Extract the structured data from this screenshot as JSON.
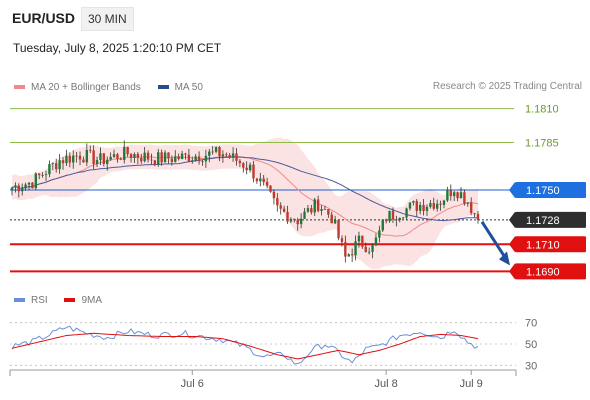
{
  "header": {
    "pair": "EUR/USD",
    "timeframe": "30 MIN",
    "datetime": "Tuesday, July 8, 2025 1:20:10 PM CET"
  },
  "legend": {
    "items": [
      {
        "label": "MA 20 + Bollinger Bands",
        "color": "#f08a8a"
      },
      {
        "label": "MA 50",
        "color": "#2b4c8c"
      }
    ],
    "credit": "Research © 2025 Trading Central"
  },
  "chart_data": {
    "type": "candlestick",
    "price_ylim": [
      1.168,
      1.182
    ],
    "levels": [
      {
        "label": "1.1810",
        "value": 1.181,
        "kind": "target",
        "color": "#8dbb44"
      },
      {
        "label": "1.1785",
        "value": 1.1785,
        "kind": "target",
        "color": "#8dbb44"
      },
      {
        "label": "1.1750",
        "value": 1.175,
        "kind": "pivot",
        "color": "#1e5fcf"
      },
      {
        "label": "1.1728",
        "value": 1.1728,
        "kind": "last",
        "color": "#333333"
      },
      {
        "label": "1.1710",
        "value": 1.171,
        "kind": "support",
        "color": "#e01010"
      },
      {
        "label": "1.1690",
        "value": 1.169,
        "kind": "support",
        "color": "#e01010"
      }
    ],
    "x_ticks": [
      {
        "label": "Jul 6",
        "index": 53
      },
      {
        "label": "Jul 8",
        "index": 110
      },
      {
        "label": "Jul 9",
        "index": 135
      }
    ],
    "price_waypoints": [
      [
        0,
        1.1752
      ],
      [
        6,
        1.1756
      ],
      [
        14,
        1.1772
      ],
      [
        20,
        1.1776
      ],
      [
        26,
        1.1772
      ],
      [
        34,
        1.1777
      ],
      [
        42,
        1.1773
      ],
      [
        50,
        1.1774
      ],
      [
        56,
        1.1776
      ],
      [
        62,
        1.1777
      ],
      [
        66,
        1.1772
      ],
      [
        70,
        1.1766
      ],
      [
        74,
        1.1752
      ],
      [
        78,
        1.1736
      ],
      [
        84,
        1.1728
      ],
      [
        90,
        1.174
      ],
      [
        94,
        1.173
      ],
      [
        98,
        1.17
      ],
      [
        102,
        1.1712
      ],
      [
        106,
        1.1707
      ],
      [
        110,
        1.173
      ],
      [
        118,
        1.1738
      ],
      [
        126,
        1.1742
      ],
      [
        130,
        1.1752
      ],
      [
        134,
        1.1742
      ],
      [
        137,
        1.1728
      ]
    ],
    "rsi": {
      "ylim": [
        20,
        80
      ],
      "ticks": [
        70,
        50,
        30
      ],
      "legend": [
        {
          "label": "RSI",
          "color": "#6a8fd8"
        },
        {
          "label": "9MA",
          "color": "#e01010"
        }
      ],
      "rsi_waypoints": [
        [
          0,
          48
        ],
        [
          6,
          52
        ],
        [
          12,
          60
        ],
        [
          16,
          66
        ],
        [
          22,
          60
        ],
        [
          28,
          56
        ],
        [
          34,
          62
        ],
        [
          42,
          58
        ],
        [
          50,
          60
        ],
        [
          56,
          57
        ],
        [
          62,
          54
        ],
        [
          68,
          48
        ],
        [
          74,
          38
        ],
        [
          80,
          40
        ],
        [
          84,
          30
        ],
        [
          88,
          44
        ],
        [
          92,
          50
        ],
        [
          96,
          42
        ],
        [
          100,
          32
        ],
        [
          104,
          45
        ],
        [
          108,
          48
        ],
        [
          114,
          58
        ],
        [
          120,
          62
        ],
        [
          126,
          56
        ],
        [
          130,
          64
        ],
        [
          134,
          52
        ],
        [
          137,
          47
        ]
      ],
      "ma_waypoints": [
        [
          0,
          46
        ],
        [
          8,
          52
        ],
        [
          16,
          58
        ],
        [
          24,
          60
        ],
        [
          34,
          58
        ],
        [
          44,
          57
        ],
        [
          54,
          57
        ],
        [
          62,
          55
        ],
        [
          70,
          48
        ],
        [
          78,
          40
        ],
        [
          84,
          36
        ],
        [
          90,
          40
        ],
        [
          96,
          44
        ],
        [
          102,
          40
        ],
        [
          108,
          44
        ],
        [
          114,
          50
        ],
        [
          120,
          57
        ],
        [
          126,
          59
        ],
        [
          132,
          58
        ],
        [
          137,
          55
        ]
      ]
    }
  }
}
